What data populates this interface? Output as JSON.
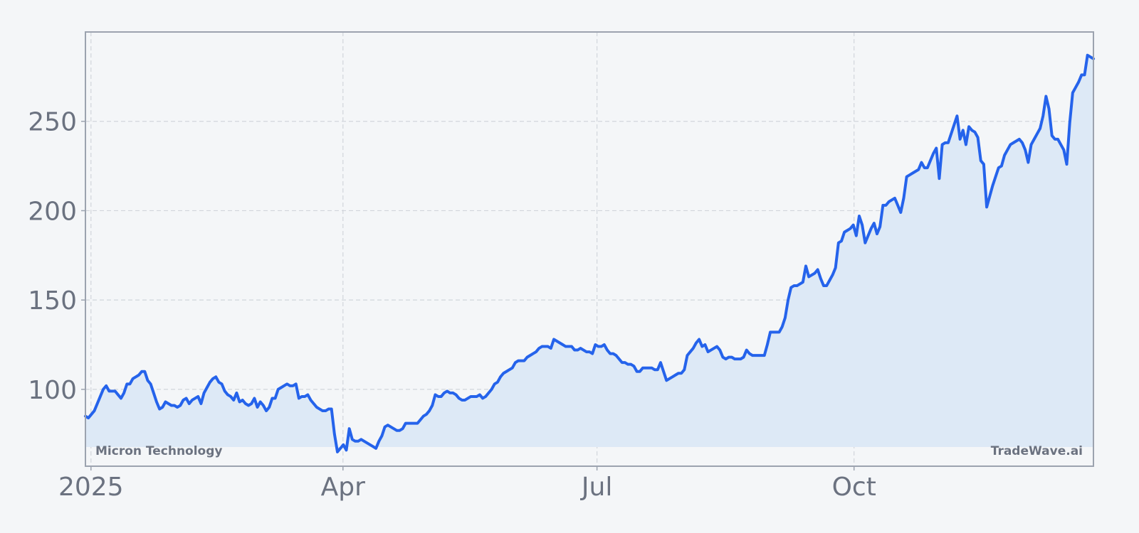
{
  "chart_data": {
    "type": "area",
    "title": "",
    "xlabel": "",
    "ylabel": "",
    "ylim": [
      57,
      300
    ],
    "x_tick_labels": [
      "2025",
      "Apr",
      "Jul",
      "Oct"
    ],
    "y_ticks": [
      100,
      150,
      200,
      250
    ],
    "grid": true,
    "legend": "none",
    "watermark_left": "Micron Technology",
    "watermark_right": "TradeWave.ai",
    "colors": {
      "line": "#2563eb",
      "fill": "#dde9f6",
      "background": "#f4f6f8",
      "axis": "#9ca3af",
      "grid": "#d1d5db",
      "text": "#6b7280"
    },
    "series": [
      {
        "values": [
          85,
          84,
          86,
          88,
          92,
          96,
          100,
          102,
          99,
          99,
          99,
          97,
          95,
          98,
          103,
          103,
          106,
          107,
          108,
          110,
          110,
          105,
          103,
          98,
          93,
          89,
          90,
          93,
          92,
          91,
          91,
          90,
          91,
          94,
          95,
          92,
          94,
          95,
          96,
          92,
          98,
          101,
          104,
          106,
          107,
          104,
          103,
          99,
          97,
          96,
          94,
          98,
          93,
          94,
          92,
          91,
          92,
          95,
          90,
          93,
          91,
          88,
          90,
          95,
          95,
          100,
          101,
          102,
          103,
          102,
          102,
          103,
          95,
          96,
          96,
          97,
          94,
          92,
          90,
          89,
          88,
          88,
          89,
          89,
          75,
          65,
          67,
          69,
          66,
          78,
          72,
          71,
          71,
          72,
          71,
          70,
          69,
          68,
          67,
          71,
          74,
          79,
          80,
          79,
          78,
          77,
          77,
          78,
          81,
          81,
          81,
          81,
          81,
          83,
          85,
          86,
          88,
          91,
          97,
          96,
          96,
          98,
          99,
          98,
          98,
          97,
          95,
          94,
          94,
          95,
          96,
          96,
          96,
          97,
          95,
          96,
          98,
          100,
          103,
          104,
          107,
          109,
          110,
          111,
          112,
          115,
          116,
          116,
          116,
          118,
          119,
          120,
          121,
          123,
          124,
          124,
          124,
          123,
          128,
          127,
          126,
          125,
          124,
          124,
          124,
          122,
          122,
          123,
          122,
          121,
          121,
          120,
          125,
          124,
          124,
          125,
          122,
          120,
          120,
          119,
          117,
          115,
          115,
          114,
          114,
          113,
          110,
          110,
          112,
          112,
          112,
          112,
          111,
          111,
          115,
          110,
          105,
          106,
          107,
          108,
          109,
          109,
          111,
          119,
          121,
          123,
          126,
          128,
          124,
          125,
          121,
          122,
          123,
          124,
          122,
          118,
          117,
          118,
          118,
          117,
          117,
          117,
          118,
          122,
          120,
          119,
          119,
          119,
          119,
          119,
          125,
          132,
          132,
          132,
          132,
          135,
          140,
          150,
          157,
          158,
          158,
          159,
          160,
          169,
          163,
          164,
          165,
          167,
          162,
          158,
          158,
          161,
          164,
          168,
          182,
          183,
          188,
          189,
          190,
          192,
          186,
          197,
          192,
          182,
          186,
          190,
          193,
          187,
          191,
          203,
          203,
          205,
          206,
          207,
          203,
          199,
          207,
          219,
          220,
          221,
          222,
          223,
          227,
          224,
          224,
          228,
          232,
          235,
          218,
          237,
          238,
          238,
          243,
          248,
          253,
          240,
          245,
          237,
          247,
          245,
          244,
          241,
          228,
          226,
          202,
          208,
          214,
          219,
          224,
          225,
          231,
          234,
          237,
          238,
          239,
          240,
          238,
          234,
          227,
          237,
          240,
          243,
          246,
          253,
          264,
          257,
          242,
          240,
          240,
          237,
          234,
          226,
          249,
          266,
          269,
          272,
          276,
          276,
          287,
          286,
          285
        ]
      }
    ]
  }
}
